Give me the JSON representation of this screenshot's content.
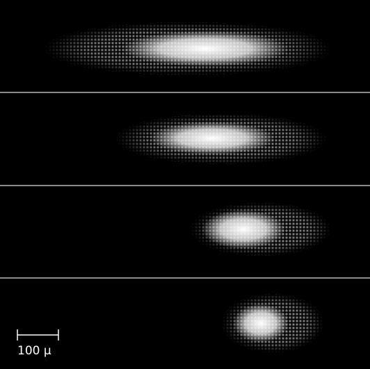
{
  "scale_bar": {
    "label": "100 μ"
  }
}
